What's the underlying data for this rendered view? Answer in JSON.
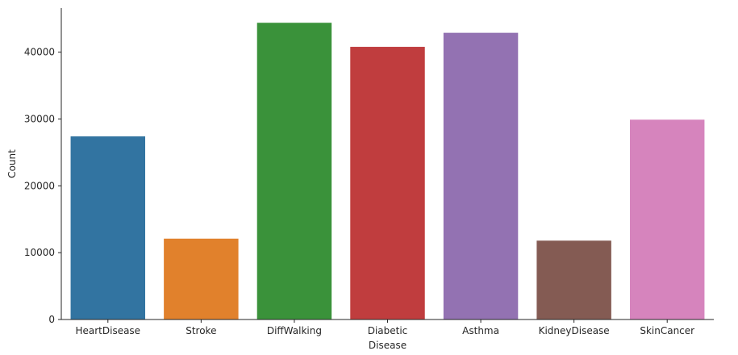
{
  "chart_data": {
    "type": "bar",
    "title": "",
    "xlabel": "Disease",
    "ylabel": "Count",
    "categories": [
      "HeartDisease",
      "Stroke",
      "DiffWalking",
      "Diabetic",
      "Asthma",
      "KidneyDisease",
      "SkinCancer"
    ],
    "values": [
      27400,
      12100,
      44400,
      40800,
      42900,
      11800,
      29900
    ],
    "colors": [
      "#3274a1",
      "#e1812c",
      "#3a923a",
      "#c03d3e",
      "#9372b2",
      "#845b53",
      "#d684bd"
    ],
    "yticks": [
      0,
      10000,
      20000,
      30000,
      40000
    ],
    "ylim": [
      0,
      46600
    ],
    "grid": false,
    "legend": "none"
  }
}
